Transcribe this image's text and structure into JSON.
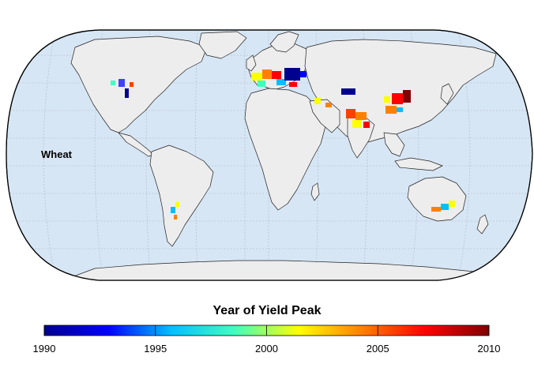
{
  "map": {
    "crop_label": "Wheat",
    "ocean_color": "#d7e6f5",
    "land_color": "#ededed",
    "border_color": "#222222"
  },
  "legend": {
    "title": "Year of Yield Peak",
    "min": 1990,
    "max": 2010,
    "ticks": [
      "1990",
      "1995",
      "2000",
      "2005",
      "2010"
    ],
    "colors": [
      "#00008f",
      "#0000ff",
      "#00c0ff",
      "#40ffbf",
      "#ffff00",
      "#ff8000",
      "#ff0000",
      "#800000"
    ]
  }
}
